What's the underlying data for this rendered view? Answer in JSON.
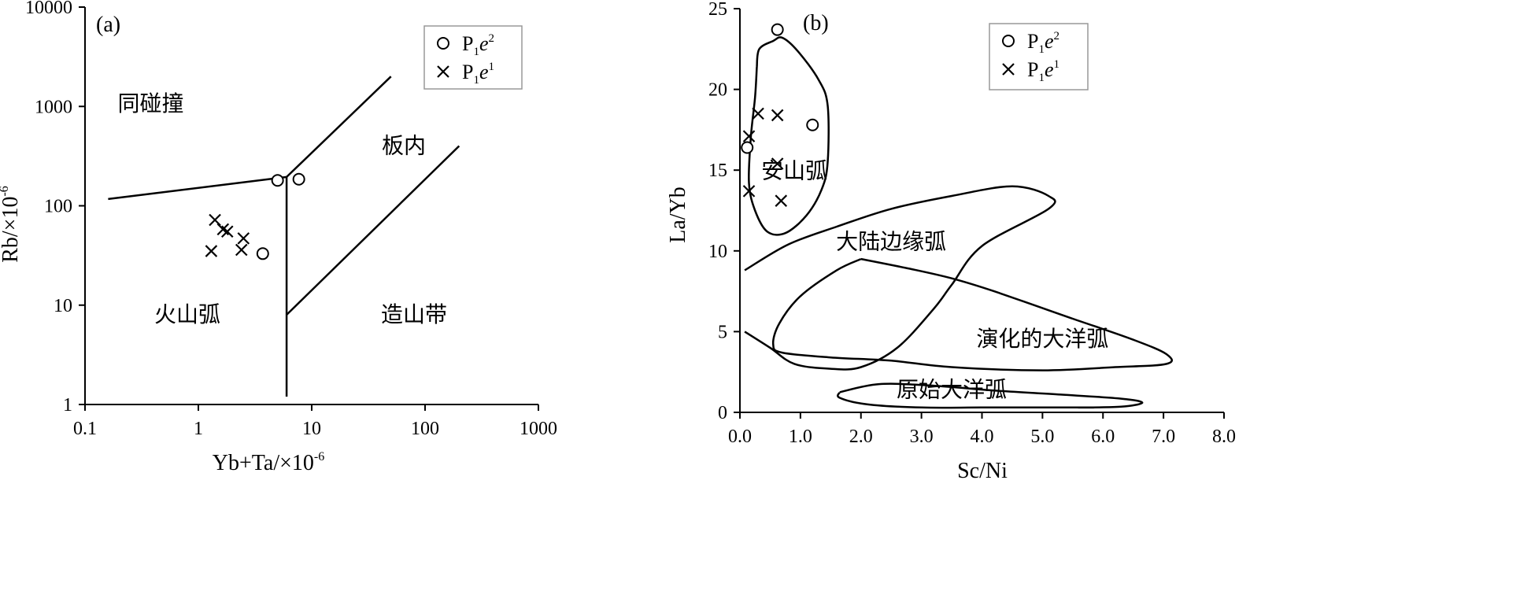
{
  "chart_data": [
    {
      "panel": "(a)",
      "type": "scatter",
      "xscale": "log",
      "yscale": "log",
      "xlim": [
        0.1,
        1000
      ],
      "ylim": [
        1,
        10000
      ],
      "xlabel": "Yb+Ta/×10",
      "xlabel_exp": "-6",
      "ylabel": "Rb/×10",
      "ylabel_exp": "-6",
      "xticks": [
        {
          "value": 0.1,
          "label": "0.1"
        },
        {
          "value": 1,
          "label": "1"
        },
        {
          "value": 10,
          "label": "10"
        },
        {
          "value": 100,
          "label": "100"
        },
        {
          "value": 1000,
          "label": "1000"
        }
      ],
      "yticks": [
        {
          "value": 1,
          "label": "1"
        },
        {
          "value": 10,
          "label": "10"
        },
        {
          "value": 100,
          "label": "100"
        },
        {
          "value": 1000,
          "label": "1000"
        },
        {
          "value": 10000,
          "label": "10000"
        }
      ],
      "legend": {
        "placement": "top-right",
        "entries": [
          {
            "marker": "circle",
            "base": "P",
            "sub": "1",
            "it": "e",
            "sup": "2"
          },
          {
            "marker": "cross",
            "base": "P",
            "sub": "1",
            "it": "e",
            "sup": "1"
          }
        ]
      },
      "series": [
        {
          "key": "P1e2",
          "marker": "circle",
          "points": [
            [
              5.0,
              180
            ],
            [
              7.7,
              185
            ],
            [
              3.7,
              33
            ]
          ]
        },
        {
          "key": "P1e1",
          "marker": "cross",
          "points": [
            [
              1.4,
              72
            ],
            [
              1.65,
              58
            ],
            [
              1.8,
              55
            ],
            [
              2.5,
              47
            ],
            [
              2.4,
              36
            ],
            [
              1.3,
              35
            ]
          ]
        }
      ],
      "boundaries": [
        [
          [
            0.16,
            117
          ],
          [
            6.0,
            195
          ]
        ],
        [
          [
            6.0,
            195
          ],
          [
            50,
            2000
          ]
        ],
        [
          [
            6.0,
            195
          ],
          [
            6.0,
            1.2
          ]
        ],
        [
          [
            6.0,
            8
          ],
          [
            200,
            400
          ]
        ]
      ],
      "regions": [
        {
          "label": "同碰撞",
          "x": 0.38,
          "y": 900
        },
        {
          "label": "板内",
          "x": 65,
          "y": 340
        },
        {
          "label": "火山弧",
          "x": 0.8,
          "y": 6.8
        },
        {
          "label": "造山带",
          "x": 80,
          "y": 6.8
        }
      ]
    },
    {
      "panel": "(b)",
      "type": "scatter",
      "xlim": [
        0,
        8
      ],
      "ylim": [
        0,
        25
      ],
      "xlabel": "Sc/Ni",
      "ylabel": "La/Yb",
      "xticks": [
        {
          "value": 0,
          "label": "0.0"
        },
        {
          "value": 1,
          "label": "1.0"
        },
        {
          "value": 2,
          "label": "2.0"
        },
        {
          "value": 3,
          "label": "3.0"
        },
        {
          "value": 4,
          "label": "4.0"
        },
        {
          "value": 5,
          "label": "5.0"
        },
        {
          "value": 6,
          "label": "6.0"
        },
        {
          "value": 7,
          "label": "7.0"
        },
        {
          "value": 8,
          "label": "8.0"
        }
      ],
      "yticks": [
        {
          "value": 0,
          "label": "0"
        },
        {
          "value": 5,
          "label": "5"
        },
        {
          "value": 10,
          "label": "10"
        },
        {
          "value": 15,
          "label": "15"
        },
        {
          "value": 20,
          "label": "20"
        },
        {
          "value": 25,
          "label": "25"
        }
      ],
      "legend": {
        "placement": "top-right",
        "entries": [
          {
            "marker": "circle",
            "base": "P",
            "sub": "1",
            "it": "e",
            "sup": "2"
          },
          {
            "marker": "cross",
            "base": "P",
            "sub": "1",
            "it": "e",
            "sup": "1"
          }
        ]
      },
      "series": [
        {
          "key": "P1e2",
          "marker": "circle",
          "points": [
            [
              0.62,
              23.7
            ],
            [
              1.2,
              17.8
            ],
            [
              0.12,
              16.4
            ]
          ]
        },
        {
          "key": "P1e1",
          "marker": "cross",
          "points": [
            [
              0.3,
              18.5
            ],
            [
              0.62,
              18.4
            ],
            [
              0.15,
              17.1
            ],
            [
              0.62,
              15.4
            ],
            [
              0.15,
              13.7
            ],
            [
              0.68,
              13.1
            ]
          ]
        }
      ],
      "regions": [
        {
          "label": "安山弧",
          "x": 0.9,
          "y": 14.5,
          "path": [
            [
              0.28,
              21.4
            ],
            [
              0.32,
              22.5
            ],
            [
              0.55,
              23.0
            ],
            [
              0.7,
              23.2
            ],
            [
              0.95,
              22.4
            ],
            [
              1.3,
              20.6
            ],
            [
              1.45,
              19.0
            ],
            [
              1.45,
              15.5
            ],
            [
              1.35,
              13.8
            ],
            [
              1.1,
              12.2
            ],
            [
              0.75,
              11.1
            ],
            [
              0.45,
              11.2
            ],
            [
              0.25,
              12.5
            ],
            [
              0.15,
              14.2
            ],
            [
              0.18,
              17.0
            ],
            [
              0.25,
              19.5
            ],
            [
              0.28,
              21.4
            ]
          ]
        },
        {
          "label": "大陆边缘弧",
          "x": 2.5,
          "y": 10.1,
          "path": [
            [
              0.08,
              8.8
            ],
            [
              0.8,
              10.4
            ],
            [
              1.6,
              11.5
            ],
            [
              2.5,
              12.6
            ],
            [
              3.5,
              13.4
            ],
            [
              4.5,
              14.0
            ],
            [
              5.1,
              13.4
            ],
            [
              5.1,
              12.6
            ],
            [
              4.0,
              10.3
            ],
            [
              3.5,
              7.9
            ],
            [
              3.2,
              6.4
            ],
            [
              2.6,
              4.0
            ],
            [
              2.0,
              2.8
            ],
            [
              1.5,
              2.7
            ],
            [
              0.9,
              3.0
            ],
            [
              0.5,
              4.0
            ],
            [
              0.08,
              5.0
            ]
          ]
        },
        {
          "label": "演化的大洋弧",
          "x": 5.0,
          "y": 4.1,
          "path": [
            [
              2.0,
              9.5
            ],
            [
              2.8,
              8.9
            ],
            [
              3.5,
              8.3
            ],
            [
              4.2,
              7.5
            ],
            [
              5.5,
              5.8
            ],
            [
              6.5,
              4.5
            ],
            [
              7.05,
              3.6
            ],
            [
              7.05,
              3.0
            ],
            [
              6.2,
              2.8
            ],
            [
              5.0,
              2.6
            ],
            [
              3.5,
              2.8
            ],
            [
              2.5,
              3.2
            ],
            [
              1.5,
              3.4
            ],
            [
              0.7,
              3.7
            ],
            [
              0.55,
              4.2
            ],
            [
              0.65,
              5.5
            ],
            [
              1.0,
              7.2
            ],
            [
              1.6,
              8.8
            ],
            [
              2.0,
              9.5
            ]
          ]
        },
        {
          "label": "原始大洋弧",
          "x": 3.5,
          "y": 0.95,
          "path": [
            [
              1.65,
              1.25
            ],
            [
              2.3,
              1.75
            ],
            [
              3.2,
              1.65
            ],
            [
              4.2,
              1.35
            ],
            [
              5.3,
              1.1
            ],
            [
              6.3,
              0.85
            ],
            [
              6.65,
              0.6
            ],
            [
              6.3,
              0.35
            ],
            [
              5.6,
              0.3
            ],
            [
              5.85,
              0.3
            ],
            [
              5.0,
              0.3
            ],
            [
              4.0,
              0.3
            ],
            [
              3.0,
              0.3
            ],
            [
              2.1,
              0.5
            ],
            [
              1.65,
              0.9
            ],
            [
              1.65,
              1.25
            ]
          ]
        }
      ]
    }
  ]
}
